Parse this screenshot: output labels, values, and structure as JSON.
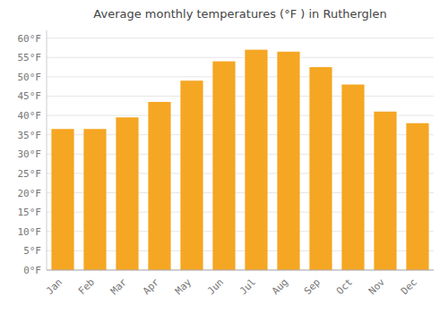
{
  "chart_data": {
    "type": "bar",
    "title": "Average monthly temperatures (°F ) in Rutherglen",
    "categories": [
      "Jan",
      "Feb",
      "Mar",
      "Apr",
      "May",
      "Jun",
      "Jul",
      "Aug",
      "Sep",
      "Oct",
      "Nov",
      "Dec"
    ],
    "values": [
      36.5,
      36.5,
      39.5,
      43.5,
      49.0,
      54.0,
      57.0,
      56.5,
      52.5,
      48.0,
      41.0,
      38.0
    ],
    "color": "#F5A623",
    "ylim": [
      0,
      62
    ],
    "yticks": [
      {
        "value": 0,
        "label": "0°F"
      },
      {
        "value": 5,
        "label": "5°F"
      },
      {
        "value": 10,
        "label": "10°F"
      },
      {
        "value": 15,
        "label": "15°F"
      },
      {
        "value": 20,
        "label": "20°F"
      },
      {
        "value": 25,
        "label": "25°F"
      },
      {
        "value": 30,
        "label": "30°F"
      },
      {
        "value": 35,
        "label": "35°F"
      },
      {
        "value": 40,
        "label": "40°F"
      },
      {
        "value": 45,
        "label": "45°F"
      },
      {
        "value": 50,
        "label": "50°F"
      },
      {
        "value": 55,
        "label": "55°F"
      },
      {
        "value": 60,
        "label": "60°F"
      }
    ],
    "grid": true
  }
}
